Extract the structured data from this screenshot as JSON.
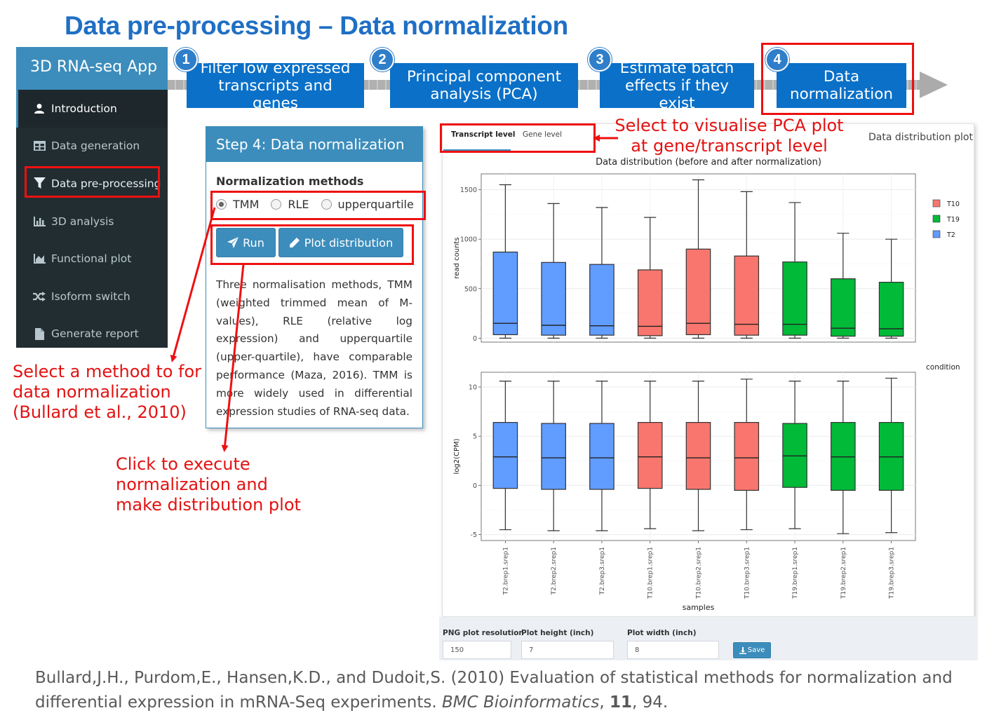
{
  "page_title": "Data pre-processing – Data normalization",
  "sidebar": {
    "app_title": "3D RNA-seq App",
    "items": [
      {
        "label": "Introduction",
        "icon": "user-icon"
      },
      {
        "label": "Data generation",
        "icon": "table-icon"
      },
      {
        "label": "Data pre-processing",
        "icon": "filter-icon"
      },
      {
        "label": "3D analysis",
        "icon": "bar-chart-icon"
      },
      {
        "label": "Functional plot",
        "icon": "area-chart-icon"
      },
      {
        "label": "Isoform switch",
        "icon": "random-icon"
      },
      {
        "label": "Generate report",
        "icon": "file-icon"
      }
    ]
  },
  "steps": [
    {
      "num": "1",
      "label": "Filter low expressed transcripts and genes"
    },
    {
      "num": "2",
      "label": "Principal component analysis (PCA)"
    },
    {
      "num": "3",
      "label": "Estimate batch effects if they exist"
    },
    {
      "num": "4",
      "label": "Data normalization"
    }
  ],
  "panel": {
    "title": "Step 4: Data normalization",
    "methods_label": "Normalization methods",
    "methods": [
      "TMM",
      "RLE",
      "upperquartile"
    ],
    "selected_method": "TMM",
    "run_label": "Run",
    "plot_label": "Plot distribution",
    "description": "Three normalisation methods, TMM (weighted trimmed mean of M-values), RLE (relative log expression) and upperquartile (upper-quartile), have comparable performance (Maza, 2016). TMM is more widely used in differential expression studies of RNA-seq data."
  },
  "annotations": {
    "method_note": "Select a method to for data normalization (Bullard et al., 2010)",
    "run_note": "Click to execute normalization and make distribution plot",
    "tab_note": "Select to visualise PCA plot at gene/transcript level"
  },
  "plot_card": {
    "tabs": [
      "Transcript level",
      "Gene level"
    ],
    "active_tab": "Transcript level",
    "right_title": "Data distribution plot"
  },
  "chart_data": {
    "type": "boxplot",
    "title": "Data distribution (before and after normalization)",
    "xlabel": "samples",
    "samples": [
      "T2.brep1.srep1",
      "T2.brep2.srep1",
      "T2.brep3.srep1",
      "T10.brep1.srep1",
      "T10.brep2.srep1",
      "T10.brep3.srep1",
      "T19.brep1.srep1",
      "T19.brep2.srep1",
      "T19.brep3.srep1"
    ],
    "conditions": [
      "T2",
      "T2",
      "T2",
      "T10",
      "T10",
      "T10",
      "T19",
      "T19",
      "T19"
    ],
    "legend": {
      "title": "condition",
      "entries": [
        {
          "name": "T10",
          "color": "#f8766d"
        },
        {
          "name": "T19",
          "color": "#00ba38"
        },
        {
          "name": "T2",
          "color": "#619cff"
        }
      ]
    },
    "panels": [
      {
        "ylabel": "read counts",
        "ylim": [
          -40,
          1660
        ],
        "yticks": [
          0,
          500,
          1000,
          1500
        ],
        "boxes": [
          {
            "min": 0,
            "q1": 35,
            "median": 150,
            "q3": 870,
            "max": 1550
          },
          {
            "min": 0,
            "q1": 30,
            "median": 130,
            "q3": 765,
            "max": 1360
          },
          {
            "min": 0,
            "q1": 30,
            "median": 125,
            "q3": 745,
            "max": 1320
          },
          {
            "min": 0,
            "q1": 25,
            "median": 120,
            "q3": 690,
            "max": 1220
          },
          {
            "min": 0,
            "q1": 35,
            "median": 150,
            "q3": 900,
            "max": 1600
          },
          {
            "min": 0,
            "q1": 30,
            "median": 140,
            "q3": 830,
            "max": 1480
          },
          {
            "min": 0,
            "q1": 30,
            "median": 140,
            "q3": 770,
            "max": 1370
          },
          {
            "min": 0,
            "q1": 20,
            "median": 100,
            "q3": 600,
            "max": 1060
          },
          {
            "min": 0,
            "q1": 20,
            "median": 95,
            "q3": 565,
            "max": 1000
          }
        ]
      },
      {
        "ylabel": "log2(CPM)",
        "ylim": [
          -5.6,
          11.5
        ],
        "yticks": [
          -5,
          0,
          5,
          10
        ],
        "boxes": [
          {
            "min": -4.5,
            "q1": -0.3,
            "median": 2.9,
            "q3": 6.4,
            "max": 10.6
          },
          {
            "min": -4.6,
            "q1": -0.4,
            "median": 2.8,
            "q3": 6.3,
            "max": 10.6
          },
          {
            "min": -4.6,
            "q1": -0.4,
            "median": 2.8,
            "q3": 6.3,
            "max": 10.6
          },
          {
            "min": -4.4,
            "q1": -0.3,
            "median": 2.9,
            "q3": 6.4,
            "max": 10.6
          },
          {
            "min": -4.6,
            "q1": -0.4,
            "median": 2.8,
            "q3": 6.4,
            "max": 10.6
          },
          {
            "min": -4.5,
            "q1": -0.5,
            "median": 2.8,
            "q3": 6.4,
            "max": 10.8
          },
          {
            "min": -4.4,
            "q1": -0.2,
            "median": 3.0,
            "q3": 6.3,
            "max": 10.6
          },
          {
            "min": -4.9,
            "q1": -0.5,
            "median": 2.9,
            "q3": 6.4,
            "max": 10.6
          },
          {
            "min": -4.8,
            "q1": -0.5,
            "median": 2.9,
            "q3": 6.4,
            "max": 10.9
          }
        ]
      }
    ]
  },
  "controls": {
    "res_label": "PNG plot resolution",
    "res_value": "150",
    "height_label": "Plot height (inch)",
    "height_value": "7",
    "width_label": "Plot width (inch)",
    "width_value": "8",
    "save_label": "Save"
  },
  "citation": {
    "part1": "Bullard,J.H., Purdom,E., Hansen,K.D., and Dudoit,S. (2010) Evaluation of statistical methods for normalization and differential expression in mRNA-Seq experiments. ",
    "journal": "BMC Bioinformatics",
    "sep1": ", ",
    "volume": "11",
    "rest": ", 94."
  },
  "colors": {
    "accent": "#3c8dbc",
    "step_blue": "#0a70c8",
    "title_blue": "#1f6fc4",
    "highlight_red": "#ee1010",
    "sidebar_dark": "#222d32"
  }
}
